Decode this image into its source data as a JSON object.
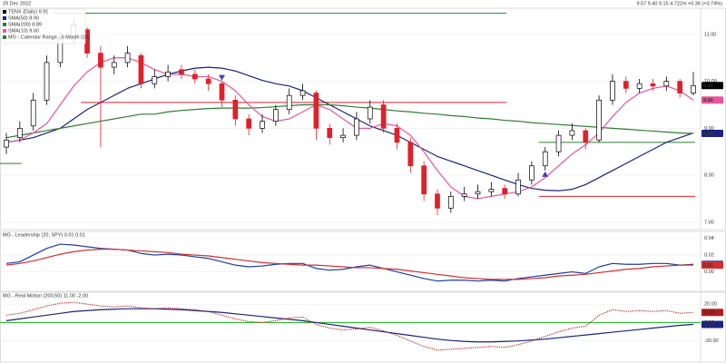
{
  "header": {
    "date": "29 Dec 2022",
    "quote": "9.57   9.40   9.15   4.722m   +0.36 (+3.74%)"
  },
  "chart_data": [
    {
      "type": "candlestick",
      "title": "TENX (Daily) 9.91",
      "ylim": [
        6.9,
        11.5
      ],
      "yticks": [
        {
          "value": 11,
          "label": "11.00"
        },
        {
          "value": 10,
          "label": "10.00"
        },
        {
          "value": 9,
          "label": "9.00"
        },
        {
          "value": 8,
          "label": "8.00"
        },
        {
          "value": 7,
          "label": "7.00"
        }
      ],
      "up_color": "#000000",
      "down_color": "#e0202a",
      "open": [
        8.6,
        8.8,
        9.05,
        9.6,
        10.4,
        10.9,
        11.1,
        10.6,
        10.3,
        10.4,
        10.55,
        9.95,
        10.1,
        10.25,
        10.15,
        10.05,
        9.95,
        9.6,
        9.2,
        9.0,
        9.15,
        9.4,
        9.7,
        9.75,
        9.0,
        8.8,
        8.85,
        9.2,
        9.5,
        9.0,
        8.7,
        8.2,
        7.6,
        7.3,
        7.55,
        7.6,
        7.65,
        7.72,
        7.6,
        7.9,
        8.2,
        8.5,
        8.85,
        8.95,
        8.75,
        9.6,
        10.0,
        9.85,
        9.95,
        9.9,
        10.0,
        9.75
      ],
      "high": [
        8.9,
        9.15,
        9.75,
        10.55,
        11.05,
        11.35,
        11.15,
        10.75,
        10.55,
        10.75,
        10.6,
        10.25,
        10.35,
        10.35,
        10.25,
        10.15,
        10.0,
        9.7,
        9.3,
        9.3,
        9.5,
        9.85,
        9.95,
        9.8,
        9.1,
        9.0,
        9.35,
        9.6,
        9.6,
        9.1,
        8.8,
        8.3,
        7.7,
        7.65,
        7.75,
        7.8,
        7.85,
        7.8,
        8.05,
        8.3,
        8.6,
        8.95,
        9.1,
        9.0,
        9.7,
        10.15,
        10.1,
        10.05,
        10.05,
        10.1,
        10.05,
        10.2
      ],
      "low": [
        8.45,
        8.7,
        8.95,
        9.5,
        10.3,
        10.8,
        10.5,
        8.6,
        10.15,
        10.3,
        9.85,
        9.85,
        10.0,
        10.05,
        9.95,
        9.8,
        9.45,
        9.05,
        8.85,
        8.9,
        9.05,
        9.3,
        9.6,
        8.75,
        8.65,
        8.7,
        8.75,
        9.1,
        8.9,
        8.55,
        8.05,
        7.45,
        7.15,
        7.2,
        7.45,
        7.5,
        7.55,
        7.5,
        7.55,
        7.8,
        8.1,
        8.4,
        8.75,
        8.55,
        8.7,
        9.5,
        9.75,
        9.75,
        9.8,
        9.8,
        9.65,
        9.7
      ],
      "close": [
        8.75,
        9.0,
        9.6,
        10.4,
        10.9,
        11.2,
        10.6,
        10.3,
        10.4,
        10.6,
        9.95,
        10.1,
        10.2,
        10.15,
        10.05,
        9.95,
        9.6,
        9.2,
        9.0,
        9.15,
        9.4,
        9.7,
        9.8,
        9.0,
        8.8,
        8.85,
        9.2,
        9.45,
        9.0,
        8.7,
        8.2,
        7.6,
        7.3,
        7.55,
        7.6,
        7.65,
        7.7,
        7.6,
        7.9,
        8.2,
        8.5,
        8.85,
        8.95,
        8.7,
        9.6,
        10.0,
        9.85,
        9.95,
        9.9,
        10.0,
        9.75,
        9.91
      ],
      "series": [
        {
          "name": "SMA(50) 8.90",
          "color": "#1a237e",
          "values": [
            8.7,
            8.75,
            8.8,
            8.9,
            9.0,
            9.2,
            9.4,
            9.55,
            9.7,
            9.85,
            9.95,
            10.05,
            10.15,
            10.22,
            10.28,
            10.3,
            10.28,
            10.22,
            10.12,
            10.02,
            9.95,
            9.9,
            9.8,
            9.65,
            9.5,
            9.35,
            9.2,
            9.05,
            8.95,
            8.85,
            8.7,
            8.55,
            8.4,
            8.3,
            8.2,
            8.1,
            8.0,
            7.9,
            7.8,
            7.72,
            7.68,
            7.67,
            7.7,
            7.8,
            7.95,
            8.1,
            8.25,
            8.4,
            8.55,
            8.7,
            8.8,
            8.9
          ]
        },
        {
          "name": "SMA(200) 8.89",
          "color": "#2e7d32",
          "values": [
            8.8,
            8.85,
            8.9,
            8.95,
            9.0,
            9.05,
            9.1,
            9.15,
            9.2,
            9.25,
            9.3,
            9.3,
            9.35,
            9.38,
            9.4,
            9.42,
            9.43,
            9.43,
            9.43,
            9.44,
            9.46,
            9.48,
            9.5,
            9.5,
            9.5,
            9.48,
            9.45,
            9.43,
            9.4,
            9.37,
            9.35,
            9.32,
            9.3,
            9.27,
            9.25,
            9.22,
            9.2,
            9.17,
            9.15,
            9.12,
            9.1,
            9.08,
            9.06,
            9.04,
            9.02,
            9.0,
            8.98,
            8.96,
            8.94,
            8.92,
            8.9,
            8.89
          ]
        },
        {
          "name": "SMA(10) 9.60",
          "color": "#e8559b",
          "values": [
            8.7,
            8.75,
            8.9,
            9.1,
            9.5,
            9.9,
            10.2,
            10.4,
            10.5,
            10.5,
            10.4,
            10.25,
            10.15,
            10.15,
            10.1,
            10.1,
            10.0,
            9.8,
            9.5,
            9.25,
            9.15,
            9.2,
            9.35,
            9.5,
            9.4,
            9.2,
            9.0,
            9.0,
            9.1,
            9.05,
            8.85,
            8.5,
            8.1,
            7.75,
            7.55,
            7.5,
            7.55,
            7.6,
            7.65,
            7.75,
            7.95,
            8.2,
            8.45,
            8.65,
            8.9,
            9.25,
            9.55,
            9.75,
            9.85,
            9.9,
            9.8,
            9.6
          ]
        }
      ],
      "levels_name": "MG - Calendar Range - 6 Month (10)",
      "levels": [
        {
          "value": 8.25,
          "color": "#2e7d32",
          "start": 0,
          "end": 1
        },
        {
          "value": 11.45,
          "color": "#2e7d32",
          "start": 4,
          "end": 37
        },
        {
          "value": 9.55,
          "color": "#e0202a",
          "start": 6,
          "end": 37
        },
        {
          "value": 8.7,
          "color": "#2e7d32",
          "start": 40,
          "end": 51
        },
        {
          "value": 7.55,
          "color": "#e0202a",
          "start": 40,
          "end": 51
        }
      ],
      "signals": [
        {
          "index": 16,
          "direction": "down",
          "color": "#3f3fbf"
        },
        {
          "index": 40,
          "direction": "up",
          "color": "#3f3fbf"
        }
      ],
      "price_labels": [
        {
          "value": 9.91,
          "label": "9.91",
          "color": "#000000"
        },
        {
          "value": 9.6,
          "label": "9.60",
          "color": "#e8559b"
        },
        {
          "value": 8.89,
          "label": "8.89",
          "color": "#1a237e"
        }
      ]
    },
    {
      "type": "line",
      "title": "MG - Leadership (20, SPY) 0.01 0.01",
      "ylim": [
        -0.02,
        0.045
      ],
      "yticks": [
        {
          "value": 0.04,
          "label": "0.04"
        },
        {
          "value": 0.02,
          "label": "0.02"
        },
        {
          "value": 0,
          "label": "0.00"
        }
      ],
      "series": [
        {
          "color": "#1a3fa8",
          "values": [
            0.01,
            0.012,
            0.02,
            0.028,
            0.033,
            0.032,
            0.03,
            0.028,
            0.027,
            0.026,
            0.022,
            0.02,
            0.021,
            0.02,
            0.018,
            0.016,
            0.012,
            0.008,
            0.006,
            0.007,
            0.009,
            0.01,
            0.01,
            0.004,
            0.002,
            0.003,
            0.006,
            0.008,
            0.004,
            0.0,
            -0.004,
            -0.008,
            -0.011,
            -0.01,
            -0.01,
            -0.011,
            -0.01,
            -0.011,
            -0.008,
            -0.006,
            -0.004,
            -0.002,
            0.0,
            -0.002,
            0.006,
            0.01,
            0.009,
            0.009,
            0.01,
            0.01,
            0.008,
            0.009
          ]
        },
        {
          "color": "#d32f2f",
          "values": [
            0.008,
            0.01,
            0.013,
            0.017,
            0.021,
            0.024,
            0.026,
            0.027,
            0.027,
            0.026,
            0.025,
            0.024,
            0.023,
            0.021,
            0.02,
            0.019,
            0.017,
            0.015,
            0.013,
            0.011,
            0.01,
            0.009,
            0.008,
            0.008,
            0.007,
            0.006,
            0.005,
            0.005,
            0.004,
            0.003,
            0.001,
            -0.001,
            -0.003,
            -0.005,
            -0.007,
            -0.008,
            -0.009,
            -0.009,
            -0.009,
            -0.008,
            -0.007,
            -0.005,
            -0.004,
            -0.003,
            -0.001,
            0.001,
            0.003,
            0.004,
            0.006,
            0.007,
            0.008,
            0.008
          ]
        }
      ],
      "price_labels": [
        {
          "value": 0.009,
          "label": "0.01",
          "color": "#1a3fa8"
        },
        {
          "value": 0.008,
          "label": "0.01",
          "color": "#d32f2f"
        }
      ]
    },
    {
      "type": "line",
      "title": "MG - Real Motion (200,50) 11.00 -2.00",
      "ylim": [
        -40,
        30
      ],
      "yticks": [
        {
          "value": 20,
          "label": "20.00"
        },
        {
          "value": 0,
          "label": "0.00"
        },
        {
          "value": -20,
          "label": "-20.00"
        }
      ],
      "zero_line_color": "#2fbf2f",
      "series": [
        {
          "color": "#1a237e",
          "values": [
            2,
            4,
            6,
            8,
            10,
            12,
            13,
            14,
            14.5,
            15,
            15,
            15,
            14.5,
            14,
            13,
            12,
            11,
            9.5,
            8,
            6.5,
            5,
            3.5,
            2,
            0,
            -2,
            -4,
            -6,
            -8,
            -10,
            -12,
            -14,
            -16,
            -18,
            -19.5,
            -20.5,
            -21,
            -21,
            -20.5,
            -20,
            -19,
            -18,
            -16.5,
            -15,
            -13.5,
            -12,
            -10.5,
            -9,
            -7.5,
            -6,
            -4.5,
            -3,
            -2
          ]
        },
        {
          "color": "#b71c1c",
          "style": "dotted",
          "values": [
            8,
            10,
            14,
            18,
            21,
            22,
            20,
            18,
            17,
            18,
            16,
            15,
            16,
            15,
            14,
            12,
            8,
            4,
            1,
            0,
            2,
            5,
            6,
            -2,
            -6,
            -8,
            -7,
            -5,
            -9,
            -14,
            -20,
            -26,
            -30,
            -29,
            -28,
            -27,
            -26,
            -27,
            -24,
            -20,
            -15,
            -10,
            -6,
            -4,
            8,
            14,
            12,
            13,
            12,
            13,
            10,
            11
          ]
        }
      ],
      "price_labels": [
        {
          "value": 11,
          "label": "11.00",
          "color": "#b71c1c"
        },
        {
          "value": -2,
          "label": "-2.00",
          "color": "#1a237e"
        }
      ]
    }
  ]
}
